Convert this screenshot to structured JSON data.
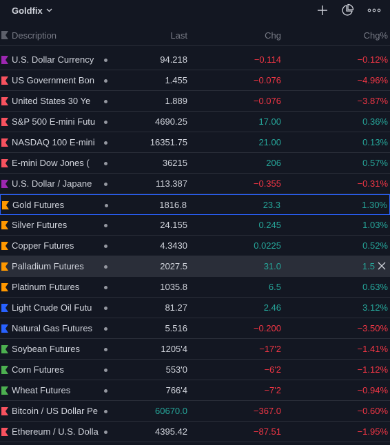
{
  "window": {
    "title": "Goldfix"
  },
  "icons": {
    "chevron": "chevron-down-icon",
    "add": "plus-icon",
    "chart": "pie-chart-icon",
    "more": "more-icon"
  },
  "columns": {
    "description": "Description",
    "last": "Last",
    "chg": "Chg",
    "chgp": "Chg%"
  },
  "colors": {
    "positive": "#26a69a",
    "negative": "#f23645",
    "selected_border": "#2962ff",
    "background": "#131722"
  },
  "rows": [
    {
      "name": "U.S. Dollar Currency",
      "last": "94.218",
      "chg": "−0.114",
      "chgp": "−0.12%",
      "dir": "neg",
      "flag": "#9c27b0"
    },
    {
      "name": "US Government Bon",
      "last": "1.455",
      "chg": "−0.076",
      "chgp": "−4.96%",
      "dir": "neg",
      "flag": "#f7525f"
    },
    {
      "name": "United States 30 Ye",
      "last": "1.889",
      "chg": "−0.076",
      "chgp": "−3.87%",
      "dir": "neg",
      "flag": "#f7525f"
    },
    {
      "name": "S&P 500 E-mini Futu",
      "last": "4690.25",
      "chg": "17.00",
      "chgp": "0.36%",
      "dir": "pos",
      "flag": "#f7525f"
    },
    {
      "name": "NASDAQ 100 E-mini",
      "last": "16351.75",
      "chg": "21.00",
      "chgp": "0.13%",
      "dir": "pos",
      "flag": "#f7525f"
    },
    {
      "name": "E-mini Dow Jones (",
      "last": "36215",
      "chg": "206",
      "chgp": "0.57%",
      "dir": "pos",
      "flag": "#f7525f"
    },
    {
      "name": "U.S. Dollar / Japane",
      "last": "113.387",
      "chg": "−0.355",
      "chgp": "−0.31%",
      "dir": "neg",
      "flag": "#9c27b0"
    },
    {
      "name": "Gold Futures",
      "last": "1816.8",
      "chg": "23.3",
      "chgp": "1.30%",
      "dir": "pos",
      "flag": "#ff9800",
      "selected": true
    },
    {
      "name": "Silver Futures",
      "last": "24.155",
      "chg": "0.245",
      "chgp": "1.03%",
      "dir": "pos",
      "flag": "#ff9800"
    },
    {
      "name": "Copper Futures",
      "last": "4.3430",
      "chg": "0.0225",
      "chgp": "0.52%",
      "dir": "pos",
      "flag": "#ff9800"
    },
    {
      "name": "Palladium Futures",
      "last": "2027.5",
      "chg": "31.0",
      "chgp": "1.5",
      "dir": "pos",
      "flag": "#ff9800",
      "hover": true
    },
    {
      "name": "Platinum Futures",
      "last": "1035.8",
      "chg": "6.5",
      "chgp": "0.63%",
      "dir": "pos",
      "flag": "#ff9800"
    },
    {
      "name": "Light Crude Oil Futu",
      "last": "81.27",
      "chg": "2.46",
      "chgp": "3.12%",
      "dir": "pos",
      "flag": "#2962ff"
    },
    {
      "name": "Natural Gas Futures",
      "last": "5.516",
      "chg": "−0.200",
      "chgp": "−3.50%",
      "dir": "neg",
      "flag": "#2962ff"
    },
    {
      "name": "Soybean Futures",
      "last": "1205'4",
      "chg": "−17'2",
      "chgp": "−1.41%",
      "dir": "neg",
      "flag": "#4caf50"
    },
    {
      "name": "Corn Futures",
      "last": "553'0",
      "chg": "−6'2",
      "chgp": "−1.12%",
      "dir": "neg",
      "flag": "#4caf50"
    },
    {
      "name": "Wheat Futures",
      "last": "766'4",
      "chg": "−7'2",
      "chgp": "−0.94%",
      "dir": "neg",
      "flag": "#4caf50"
    },
    {
      "name": "Bitcoin / US Dollar Pe",
      "last": "60670.0",
      "chg": "−367.0",
      "chgp": "−0.60%",
      "dir": "neg",
      "flag": "#f7525f",
      "last_color": "#26a69a"
    },
    {
      "name": "Ethereum / U.S. Dolla",
      "last": "4395.42",
      "chg": "−87.51",
      "chgp": "−1.95%",
      "dir": "neg",
      "flag": "#f7525f"
    }
  ]
}
